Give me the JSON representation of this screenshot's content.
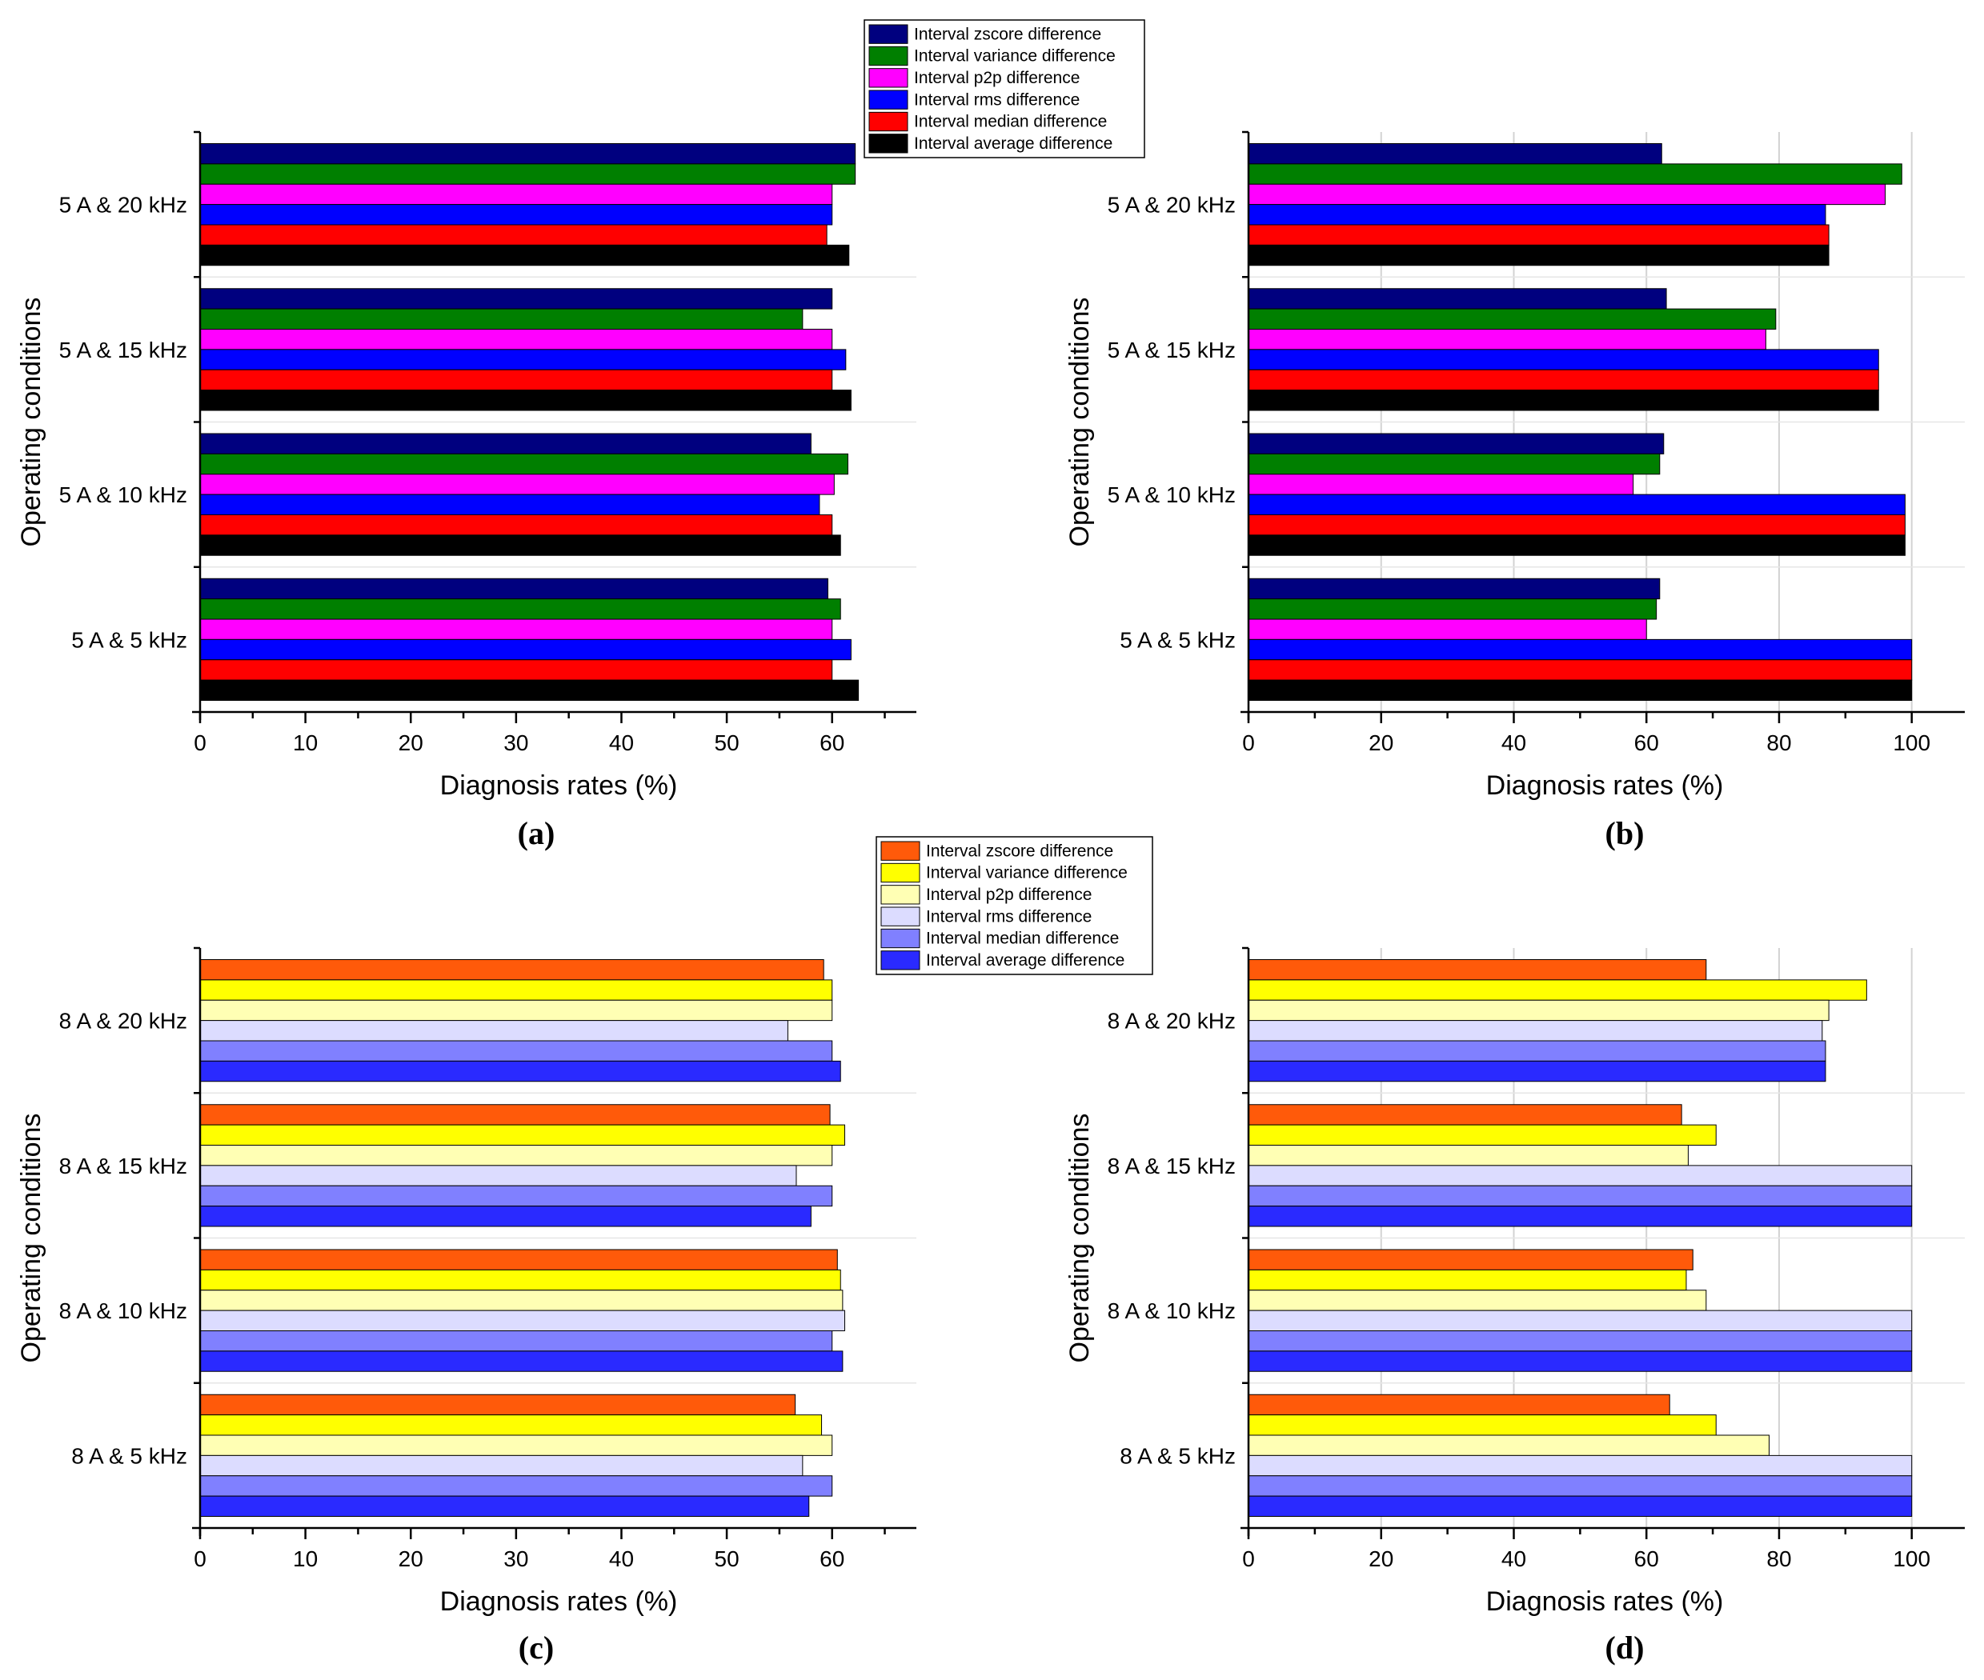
{
  "figure": {
    "panel_labels": [
      "(a)",
      "(b)",
      "(c)",
      "(d)"
    ]
  },
  "legends": {
    "top": {
      "entries": [
        {
          "label": "Interval zscore difference",
          "color": "#00007f"
        },
        {
          "label": "Interval variance difference",
          "color": "#007f00"
        },
        {
          "label": "Interval p2p difference",
          "color": "#ff00ff"
        },
        {
          "label": "Interval rms difference",
          "color": "#0000ff"
        },
        {
          "label": "Interval median difference",
          "color": "#ff0000"
        },
        {
          "label": "Interval average difference",
          "color": "#000000"
        }
      ]
    },
    "bottom": {
      "entries": [
        {
          "label": "Interval zscore difference",
          "color": "#ff5a0a"
        },
        {
          "label": "Interval variance difference",
          "color": "#ffff00"
        },
        {
          "label": "Interval p2p difference",
          "color": "#ffffb4"
        },
        {
          "label": "Interval rms difference",
          "color": "#dcdcff"
        },
        {
          "label": "Interval median difference",
          "color": "#8080ff"
        },
        {
          "label": "Interval average difference",
          "color": "#2a2aff"
        }
      ]
    }
  },
  "chart_data": [
    {
      "panel": "(a)",
      "type": "bar",
      "orientation": "horizontal",
      "xlabel": "Diagnosis rates (%)",
      "ylabel": "Operating conditions",
      "xlim": [
        0,
        68
      ],
      "xticks": [
        0,
        10,
        20,
        30,
        40,
        50,
        60
      ],
      "grid": false,
      "legend": "top",
      "categories": [
        "5 A & 5 kHz",
        "5 A & 10 kHz",
        "5 A & 15 kHz",
        "5 A & 20 kHz"
      ],
      "series": [
        {
          "name": "Interval zscore difference",
          "values": [
            59.6,
            58,
            60,
            62.2
          ]
        },
        {
          "name": "Interval variance difference",
          "values": [
            60.8,
            61.5,
            57.2,
            62.2
          ]
        },
        {
          "name": "Interval p2p difference",
          "values": [
            60,
            60.2,
            60,
            60
          ]
        },
        {
          "name": "Interval rms difference",
          "values": [
            61.8,
            58.8,
            61.3,
            60
          ]
        },
        {
          "name": "Interval median difference",
          "values": [
            60,
            60,
            60,
            59.5
          ]
        },
        {
          "name": "Interval average difference",
          "values": [
            62.5,
            60.8,
            61.8,
            61.6
          ]
        }
      ]
    },
    {
      "panel": "(b)",
      "type": "bar",
      "orientation": "horizontal",
      "xlabel": "Diagnosis rates (%)",
      "ylabel": "Operating conditions",
      "xlim": [
        0,
        108
      ],
      "xticks": [
        0,
        20,
        40,
        60,
        80,
        100
      ],
      "grid": true,
      "legend": "top",
      "categories": [
        "5 A & 5 kHz",
        "5 A & 10 kHz",
        "5 A & 15 kHz",
        "5 A & 20 kHz"
      ],
      "series": [
        {
          "name": "Interval zscore difference",
          "values": [
            62,
            62.6,
            63,
            62.3
          ]
        },
        {
          "name": "Interval variance difference",
          "values": [
            61.5,
            62,
            79.5,
            98.5
          ]
        },
        {
          "name": "Interval p2p difference",
          "values": [
            60,
            58,
            78,
            96
          ]
        },
        {
          "name": "Interval rms difference",
          "values": [
            100,
            99,
            95,
            87
          ]
        },
        {
          "name": "Interval median difference",
          "values": [
            100,
            99,
            95,
            87.5
          ]
        },
        {
          "name": "Interval average difference",
          "values": [
            100,
            99,
            95,
            87.5
          ]
        }
      ]
    },
    {
      "panel": "(c)",
      "type": "bar",
      "orientation": "horizontal",
      "xlabel": "Diagnosis rates (%)",
      "ylabel": "Operating conditions",
      "xlim": [
        0,
        68
      ],
      "xticks": [
        0,
        10,
        20,
        30,
        40,
        50,
        60
      ],
      "grid": false,
      "legend": "bottom",
      "categories": [
        "8 A & 5 kHz",
        "8 A & 10 kHz",
        "8 A & 15 kHz",
        "8 A & 20 kHz"
      ],
      "series": [
        {
          "name": "Interval zscore difference",
          "values": [
            56.5,
            60.5,
            59.8,
            59.2
          ]
        },
        {
          "name": "Interval variance difference",
          "values": [
            59,
            60.8,
            61.2,
            60
          ]
        },
        {
          "name": "Interval p2p difference",
          "values": [
            60,
            61,
            60,
            60
          ]
        },
        {
          "name": "Interval rms difference",
          "values": [
            57.2,
            61.2,
            56.6,
            55.8
          ]
        },
        {
          "name": "Interval median difference",
          "values": [
            60,
            60,
            60,
            60
          ]
        },
        {
          "name": "Interval average difference",
          "values": [
            57.8,
            61,
            58,
            60.8
          ]
        }
      ]
    },
    {
      "panel": "(d)",
      "type": "bar",
      "orientation": "horizontal",
      "xlabel": "Diagnosis rates (%)",
      "ylabel": "Operating conditions",
      "xlim": [
        0,
        108
      ],
      "xticks": [
        0,
        20,
        40,
        60,
        80,
        100
      ],
      "grid": true,
      "legend": "bottom",
      "categories": [
        "8 A & 5 kHz",
        "8 A & 10 kHz",
        "8 A & 15 kHz",
        "8 A & 20 kHz"
      ],
      "series": [
        {
          "name": "Interval zscore difference",
          "values": [
            63.5,
            67,
            65.3,
            69
          ]
        },
        {
          "name": "Interval variance difference",
          "values": [
            70.5,
            66,
            70.5,
            93.2
          ]
        },
        {
          "name": "Interval p2p difference",
          "values": [
            78.5,
            69,
            66.3,
            87.5
          ]
        },
        {
          "name": "Interval rms difference",
          "values": [
            100,
            100,
            100,
            86.5
          ]
        },
        {
          "name": "Interval median difference",
          "values": [
            100,
            100,
            100,
            87
          ]
        },
        {
          "name": "Interval average difference",
          "values": [
            100,
            100,
            100,
            87
          ]
        }
      ]
    }
  ]
}
